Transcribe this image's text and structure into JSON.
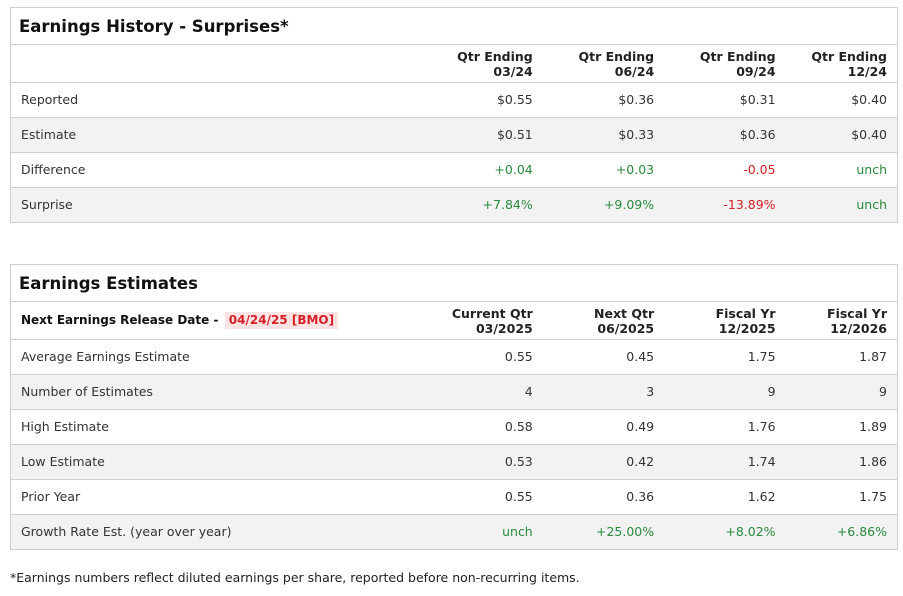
{
  "history": {
    "title": "Earnings History - Surprises*",
    "columns": [
      {
        "line1": "Qtr Ending",
        "line2": "03/24"
      },
      {
        "line1": "Qtr Ending",
        "line2": "06/24"
      },
      {
        "line1": "Qtr Ending",
        "line2": "09/24"
      },
      {
        "line1": "Qtr Ending",
        "line2": "12/24"
      }
    ],
    "rows": [
      {
        "label": "Reported",
        "values": [
          "$0.55",
          "$0.36",
          "$0.31",
          "$0.40"
        ]
      },
      {
        "label": "Estimate",
        "values": [
          "$0.51",
          "$0.33",
          "$0.36",
          "$0.40"
        ]
      },
      {
        "label": "Difference",
        "values": [
          "+0.04",
          "+0.03",
          "-0.05",
          "unch"
        ]
      },
      {
        "label": "Surprise",
        "values": [
          "+7.84%",
          "+9.09%",
          "-13.89%",
          "unch"
        ]
      }
    ]
  },
  "estimates": {
    "title": "Earnings Estimates",
    "release_label": "Next Earnings Release Date -",
    "release_date": "04/24/25 [BMO]",
    "columns": [
      {
        "line1": "Current Qtr",
        "line2": "03/2025"
      },
      {
        "line1": "Next Qtr",
        "line2": "06/2025"
      },
      {
        "line1": "Fiscal Yr",
        "line2": "12/2025"
      },
      {
        "line1": "Fiscal Yr",
        "line2": "12/2026"
      }
    ],
    "rows": [
      {
        "label": "Average Earnings Estimate",
        "values": [
          "0.55",
          "0.45",
          "1.75",
          "1.87"
        ]
      },
      {
        "label": "Number of Estimates",
        "values": [
          "4",
          "3",
          "9",
          "9"
        ]
      },
      {
        "label": "High Estimate",
        "values": [
          "0.58",
          "0.49",
          "1.76",
          "1.89"
        ]
      },
      {
        "label": "Low Estimate",
        "values": [
          "0.53",
          "0.42",
          "1.74",
          "1.86"
        ]
      },
      {
        "label": "Prior Year",
        "values": [
          "0.55",
          "0.36",
          "1.62",
          "1.75"
        ]
      },
      {
        "label": "Growth Rate Est. (year over year)",
        "values": [
          "unch",
          "+25.00%",
          "+8.02%",
          "+6.86%"
        ]
      }
    ]
  },
  "footnote": "*Earnings numbers reflect diluted earnings per share, reported before non-recurring items.",
  "colors": {
    "positive": "#2a8a3e",
    "negative": "#d61f26",
    "release_date_bg": "#fde3e3",
    "alt_row_bg": "#f2f2f2",
    "border": "#cfcfcf"
  }
}
